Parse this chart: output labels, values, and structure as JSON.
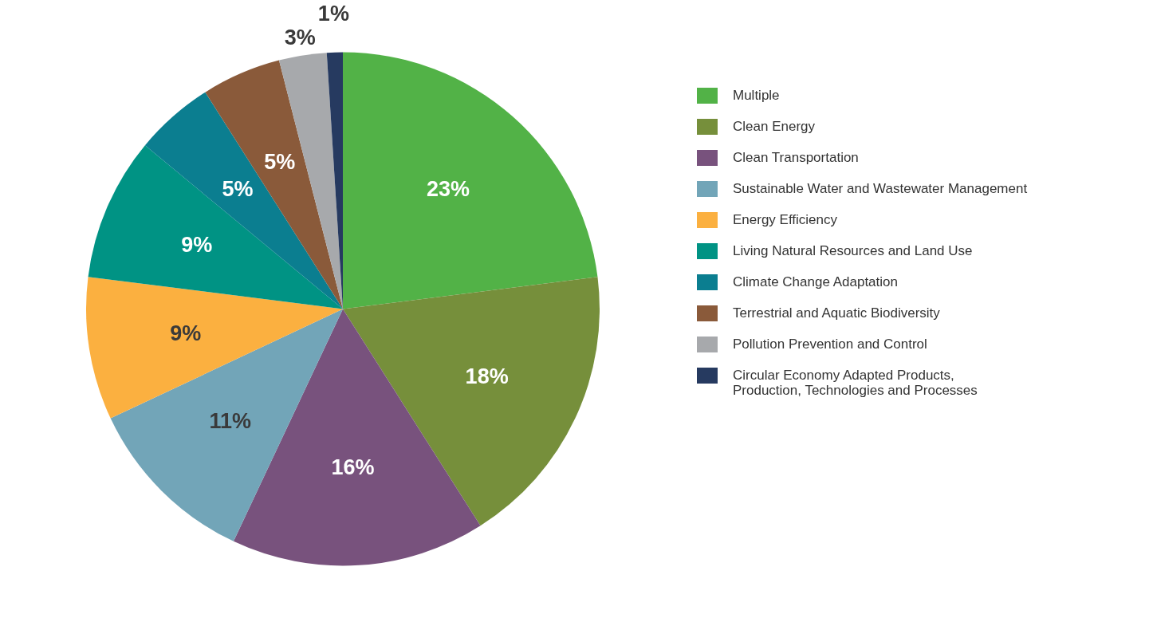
{
  "chart_data": {
    "type": "pie",
    "categories": [
      "Multiple",
      "Clean Energy",
      "Clean Transportation",
      "Sustainable Water and Wastewater Management",
      "Energy Efficiency",
      "Living Natural Resources and Land Use",
      "Climate Change Adaptation",
      "Terrestrial and Aquatic Biodiversity",
      "Pollution Prevention and Control",
      "Circular Economy Adapted Products, Production, Technologies and Processes"
    ],
    "values": [
      23,
      18,
      16,
      11,
      9,
      9,
      5,
      5,
      3,
      1
    ],
    "colors": [
      "#52b247",
      "#768f3b",
      "#78527d",
      "#72a5b8",
      "#fbb040",
      "#009384",
      "#0b7e90",
      "#8a5a3a",
      "#a7a9ac",
      "#263a60"
    ],
    "value_labels": [
      "23%",
      "18%",
      "16%",
      "11%",
      "9%",
      "9%",
      "5%",
      "5%",
      "3%",
      "1%"
    ],
    "legend": "right"
  }
}
